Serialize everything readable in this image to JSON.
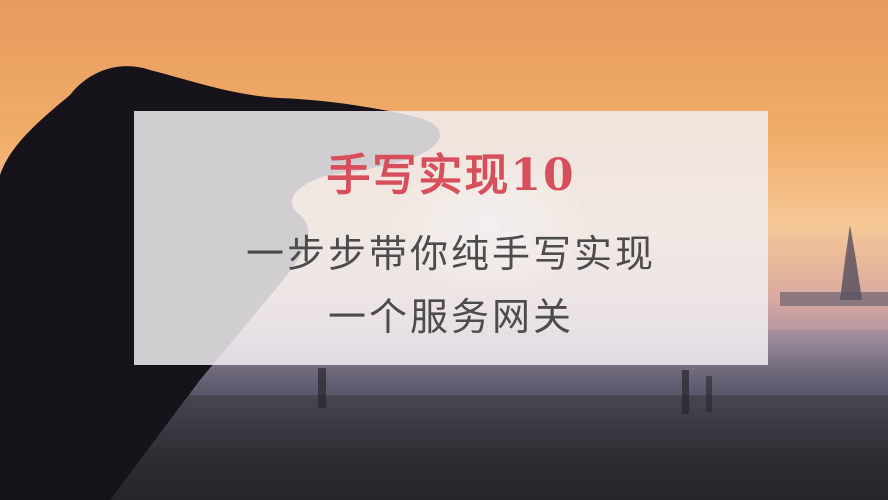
{
  "card": {
    "title": "手写实现10",
    "line1": "一步步带你纯手写实现",
    "line2": "一个服务网关"
  },
  "colors": {
    "title": "#d84f5c",
    "body_text": "#4c4c4c",
    "card_background": "#f0eef0"
  }
}
